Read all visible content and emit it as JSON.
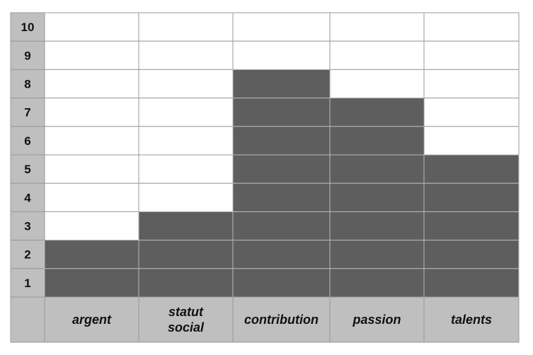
{
  "chart_data": {
    "type": "table",
    "rows": [
      "10",
      "9",
      "8",
      "7",
      "6",
      "5",
      "4",
      "3",
      "2",
      "1"
    ],
    "categories": [
      {
        "label_lines": [
          "argent"
        ],
        "value": 2
      },
      {
        "label_lines": [
          "statut",
          "social"
        ],
        "value": 3
      },
      {
        "label_lines": [
          "contribution"
        ],
        "value": 8
      },
      {
        "label_lines": [
          "passion"
        ],
        "value": 7
      },
      {
        "label_lines": [
          "talents"
        ],
        "value": 5
      }
    ],
    "ylim": [
      0,
      10
    ],
    "colors": {
      "filled": "#5e5e5e",
      "empty": "#ffffff",
      "header": "#bfbfbf",
      "grid": "#9a9a9a"
    }
  }
}
